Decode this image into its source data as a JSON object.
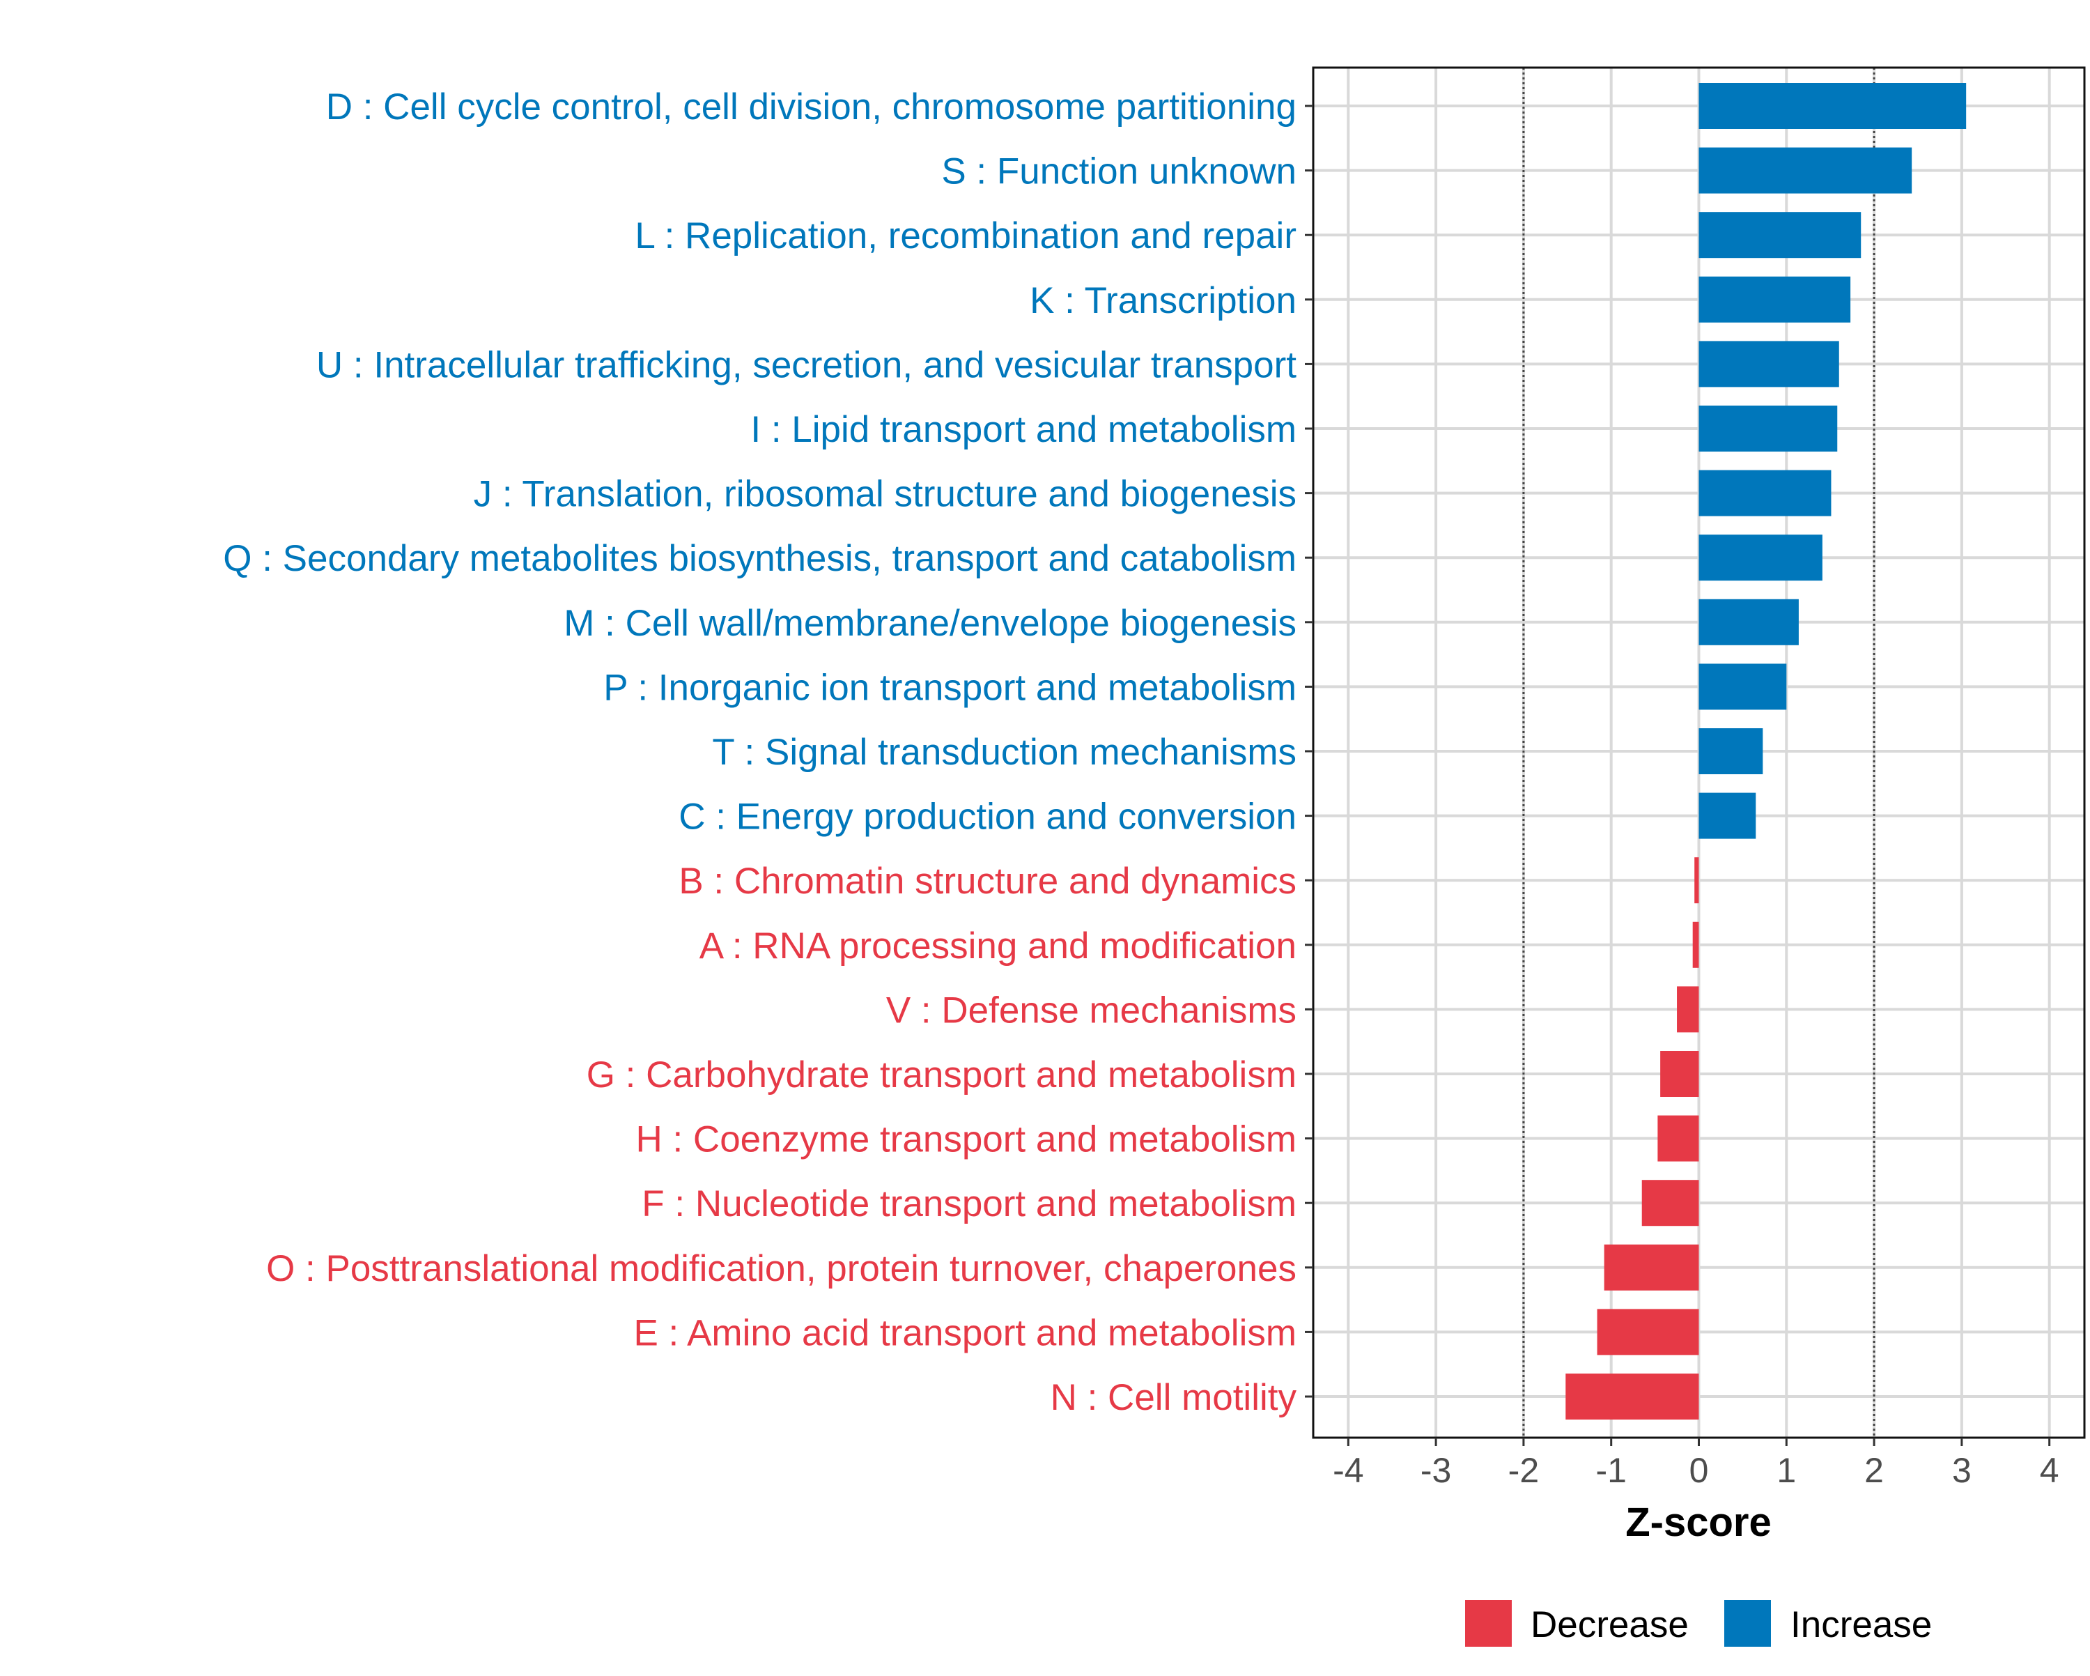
{
  "chart_data": {
    "type": "bar",
    "orientation": "horizontal",
    "xlabel": "Z-score",
    "ylabel": "",
    "xlim": [
      -4.4,
      4.4
    ],
    "xticks": [
      -4,
      -3,
      -2,
      -1,
      0,
      1,
      2,
      3,
      4
    ],
    "xtick_labels": [
      "-4",
      "-3",
      "-2",
      "-1",
      "0",
      "1",
      "2",
      "3",
      "4"
    ],
    "reference_lines": [
      -2,
      2
    ],
    "grid": true,
    "legend_position": "bottom",
    "colors": {
      "Increase": "#0077bb",
      "Decrease": "#e63946"
    },
    "legend": [
      {
        "label": "Decrease",
        "color": "#e63946"
      },
      {
        "label": "Increase",
        "color": "#0077bb"
      }
    ],
    "categories": [
      "D : Cell cycle control, cell division, chromosome partitioning",
      "S : Function unknown",
      "L : Replication, recombination and repair",
      "K : Transcription",
      "U : Intracellular trafficking, secretion, and vesicular transport",
      "I : Lipid transport and metabolism",
      "J : Translation, ribosomal structure and biogenesis",
      "Q : Secondary metabolites biosynthesis, transport and catabolism",
      "M : Cell wall/membrane/envelope biogenesis",
      "P : Inorganic ion transport and metabolism",
      "T : Signal transduction mechanisms",
      "C : Energy production and conversion",
      "B : Chromatin structure and dynamics",
      "A : RNA processing and modification",
      "V : Defense mechanisms",
      "G : Carbohydrate transport and metabolism",
      "H : Coenzyme transport and metabolism",
      "F : Nucleotide transport and metabolism",
      "O : Posttranslational modification, protein turnover, chaperones",
      "E : Amino acid transport and metabolism",
      "N : Cell motility"
    ],
    "values": [
      3.05,
      2.43,
      1.85,
      1.73,
      1.6,
      1.58,
      1.51,
      1.41,
      1.14,
      1.0,
      0.73,
      0.65,
      -0.05,
      -0.07,
      -0.25,
      -0.44,
      -0.47,
      -0.65,
      -1.08,
      -1.16,
      -1.52
    ],
    "groups": [
      "Increase",
      "Increase",
      "Increase",
      "Increase",
      "Increase",
      "Increase",
      "Increase",
      "Increase",
      "Increase",
      "Increase",
      "Increase",
      "Increase",
      "Decrease",
      "Decrease",
      "Decrease",
      "Decrease",
      "Decrease",
      "Decrease",
      "Decrease",
      "Decrease",
      "Decrease"
    ]
  }
}
